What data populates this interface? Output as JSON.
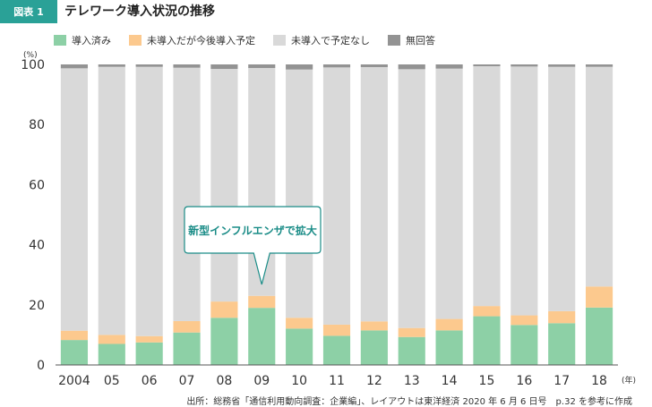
{
  "header": {
    "figure_tag": "図表 1",
    "title": "テレワーク導入状況の推移",
    "tag_color": "#2aa197"
  },
  "callout": {
    "text": "新型インフルエンザで拡大",
    "color": "#1a8c87"
  },
  "source_note": "出所：総務省「通信利用動向調査：企業編」、レイアウトは東洋経済 2020 年 6 月 6 日号　p.32 を参考に作成",
  "chart_data": {
    "type": "bar",
    "stacked": true,
    "title": "テレワーク導入状況の推移",
    "categories": [
      "2004",
      "05",
      "06",
      "07",
      "08",
      "09",
      "10",
      "11",
      "12",
      "13",
      "14",
      "15",
      "16",
      "17",
      "18"
    ],
    "x_unit": "(年)",
    "y_unit": "(%)",
    "ylim": [
      0,
      100
    ],
    "yticks": [
      0,
      20,
      40,
      60,
      80,
      100
    ],
    "grid": false,
    "legend_position": "top-left",
    "series": [
      {
        "name": "導入済み",
        "color": "#8dd0a6",
        "values": [
          8.3,
          7.0,
          7.5,
          10.8,
          15.7,
          19.0,
          12.1,
          9.7,
          11.5,
          9.3,
          11.5,
          16.2,
          13.3,
          13.9,
          19.1
        ]
      },
      {
        "name": "未導入だが今後導入予定",
        "color": "#fcc98e",
        "values": [
          3.1,
          3.0,
          2.1,
          3.8,
          5.4,
          4.0,
          3.6,
          3.7,
          3.0,
          3.0,
          3.8,
          3.4,
          3.2,
          4.0,
          7.0
        ]
      },
      {
        "name": "未導入で予定なし",
        "color": "#d9d9d9",
        "values": [
          87.3,
          89.2,
          89.6,
          84.3,
          77.4,
          75.8,
          82.6,
          85.6,
          84.6,
          86.1,
          83.3,
          79.8,
          82.8,
          81.3,
          73.1
        ]
      },
      {
        "name": "無回答",
        "color": "#939393",
        "values": [
          1.3,
          0.8,
          0.8,
          1.1,
          1.5,
          1.2,
          1.7,
          1.0,
          0.9,
          1.6,
          1.4,
          0.6,
          0.7,
          0.8,
          0.8
        ]
      }
    ]
  }
}
